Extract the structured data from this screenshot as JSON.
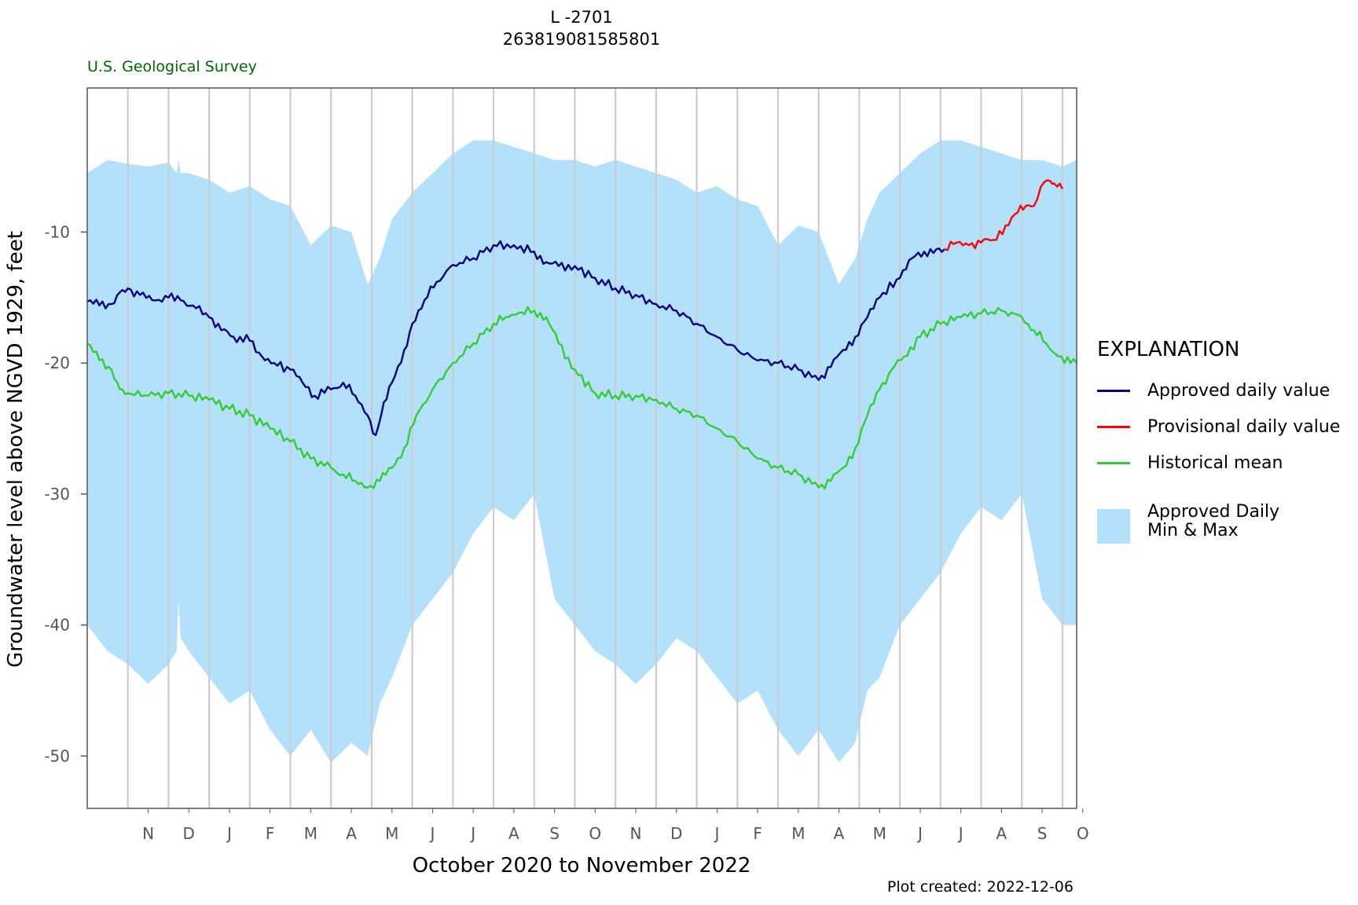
{
  "header": {
    "title_line1": "L -2701",
    "title_line2": "263819081585801",
    "agency": "U.S. Geological Survey"
  },
  "footer": {
    "plot_created": "Plot created: 2022-12-06"
  },
  "legend": {
    "title": "EXPLANATION",
    "approved": "Approved daily value",
    "provisional": "Provisional daily value",
    "mean": "Historical mean",
    "minmax_line1": "Approved Daily",
    "minmax_line2": "Min & Max"
  },
  "colors": {
    "approved": "#000080",
    "provisional": "#ff0000",
    "mean": "#32cd32",
    "band": "#b3e0fa",
    "grid": "#cccccc",
    "agency": "#006400"
  },
  "chart_data": {
    "type": "line",
    "title": "L -2701 263819081585801",
    "xlabel": "October 2020 to November 2022",
    "ylabel": "Groundwater level above NGVD 1929, feet",
    "x_tick_labels": [
      "N",
      "D",
      "J",
      "F",
      "M",
      "A",
      "M",
      "J",
      "J",
      "A",
      "S",
      "O",
      "N",
      "D",
      "J",
      "F",
      "M",
      "A",
      "M",
      "J",
      "J",
      "A",
      "S",
      "O"
    ],
    "y_ticks": [
      -10,
      -20,
      -30,
      -40,
      -50
    ],
    "ylim": [
      -54,
      1
    ],
    "grid": "vertical month boundaries",
    "legend_position": "right",
    "x_month_index_note": "x values are months elapsed since 2020-10-01",
    "xlim": [
      0,
      24.35
    ],
    "series": [
      {
        "name": "Approved Daily Min & Max",
        "kind": "band",
        "x": [
          0,
          0.5,
          1,
          1.5,
          2,
          2.2,
          2.25,
          2.3,
          2.5,
          3,
          3.5,
          4,
          4.5,
          5,
          5.5,
          6,
          6.5,
          6.9,
          7.2,
          7.5,
          8,
          8.5,
          9,
          9.5,
          10,
          10.5,
          11,
          11.5,
          12,
          12.5,
          13,
          13.5,
          14,
          14.5,
          15,
          15.5,
          16,
          16.5,
          17,
          17.5,
          18,
          18.5,
          18.9,
          19.2,
          19.5,
          20,
          20.5,
          21,
          21.5,
          22,
          22.5,
          23,
          23.5,
          24,
          24.35
        ],
        "max": [
          -5.5,
          -4.5,
          -4.8,
          -5,
          -4.7,
          -5.5,
          -4.5,
          -5.5,
          -5.5,
          -6,
          -7,
          -6.5,
          -7.5,
          -8,
          -11,
          -9.5,
          -10,
          -14,
          -12,
          -9,
          -7,
          -5.5,
          -4,
          -3,
          -3,
          -3.5,
          -4,
          -4.5,
          -4.5,
          -5,
          -4.5,
          -5,
          -5.5,
          -6,
          -7,
          -6.5,
          -7.5,
          -8,
          -11,
          -9.5,
          -10,
          -14,
          -12,
          -9,
          -7,
          -5.5,
          -4,
          -3,
          -3,
          -3.5,
          -4,
          -4.5,
          -4.5,
          -5,
          -4.5
        ],
        "min": [
          -40,
          -42,
          -43,
          -44.5,
          -43,
          -42,
          -38,
          -41,
          -42,
          -44,
          -46,
          -45,
          -48,
          -50,
          -48,
          -50.5,
          -49,
          -50,
          -46,
          -44,
          -40,
          -38,
          -36,
          -33,
          -31,
          -32,
          -30,
          -38,
          -40,
          -42,
          -43,
          -44.5,
          -43,
          -41,
          -42,
          -44,
          -46,
          -45,
          -48,
          -50,
          -48,
          -50.5,
          -49,
          -45,
          -44,
          -40,
          -38,
          -36,
          -33,
          -31,
          -32,
          -30,
          -38,
          -40,
          -40
        ]
      },
      {
        "name": "Approved daily value",
        "x": [
          0,
          0.3,
          0.6,
          0.8,
          1,
          1.3,
          1.6,
          2,
          2.3,
          2.6,
          3,
          3.3,
          3.6,
          4,
          4.3,
          4.6,
          5,
          5.3,
          5.6,
          6,
          6.3,
          6.6,
          6.9,
          7.1,
          7.3,
          7.5,
          7.8,
          8,
          8.3,
          8.6,
          9,
          9.5,
          10,
          10.5,
          11,
          11.3,
          11.6,
          12,
          12.5,
          13,
          13.5,
          14,
          14.5,
          15,
          15.5,
          16,
          16.5,
          17,
          17.5,
          18,
          18.3,
          18.6,
          18.9,
          19.2,
          19.5,
          20,
          20.3,
          20.6,
          20.9,
          21.1
        ],
        "values": [
          -15.3,
          -15.6,
          -15.5,
          -14.6,
          -14.3,
          -14.8,
          -15.2,
          -15,
          -15.2,
          -15.6,
          -16.5,
          -17.5,
          -18,
          -18.3,
          -19.5,
          -20,
          -20.5,
          -21.5,
          -22.5,
          -22,
          -21.5,
          -22.5,
          -24,
          -25.5,
          -23,
          -21.5,
          -19,
          -17,
          -15.2,
          -13.8,
          -12.5,
          -12,
          -11,
          -11,
          -11.5,
          -12.3,
          -12.6,
          -12.6,
          -13.5,
          -14.3,
          -14.8,
          -15.5,
          -16,
          -17,
          -18,
          -19,
          -19.8,
          -20,
          -20.5,
          -21.3,
          -20.3,
          -19,
          -18,
          -16.5,
          -15,
          -13.5,
          -12,
          -11.5,
          -11.3,
          -11.3
        ]
      },
      {
        "name": "Provisional daily value",
        "x": [
          21.1,
          21.4,
          21.7,
          22,
          22.3,
          22.6,
          22.9,
          23.1,
          23.3,
          23.55,
          23.7,
          23.8,
          24
        ],
        "values": [
          -11.3,
          -10.8,
          -11,
          -10.8,
          -10.6,
          -9.5,
          -8.5,
          -8,
          -8,
          -6.2,
          -6.1,
          -6.3,
          -6.7
        ]
      },
      {
        "name": "Historical mean",
        "x": [
          0,
          0.3,
          0.6,
          0.8,
          1,
          1.5,
          2,
          2.5,
          3,
          3.5,
          4,
          4.5,
          5,
          5.5,
          6,
          6.3,
          6.6,
          6.9,
          7.2,
          7.5,
          7.8,
          8.1,
          8.5,
          9,
          9.5,
          10,
          10.3,
          10.6,
          11,
          11.3,
          11.6,
          12,
          12.5,
          13,
          13.5,
          14,
          14.5,
          15,
          15.5,
          16,
          16.5,
          17,
          17.5,
          18,
          18.3,
          18.6,
          18.9,
          19.2,
          19.5,
          19.8,
          20.1,
          20.5,
          21,
          21.5,
          22,
          22.5,
          23,
          23.3,
          23.6,
          23.9,
          24.2,
          24.35
        ],
        "values": [
          -18.5,
          -19.8,
          -20.5,
          -22,
          -22.3,
          -22.5,
          -22.3,
          -22.5,
          -22.8,
          -23.5,
          -24,
          -25,
          -26,
          -27.3,
          -28,
          -28.5,
          -29,
          -29.5,
          -29,
          -28,
          -26.5,
          -24,
          -22,
          -20,
          -18.5,
          -17,
          -16.5,
          -16.2,
          -16,
          -16.5,
          -18.5,
          -20.5,
          -22.3,
          -22.5,
          -22.5,
          -22.8,
          -23.5,
          -24,
          -25,
          -26,
          -27.3,
          -28,
          -28.5,
          -29.5,
          -29,
          -28,
          -26.5,
          -24,
          -22,
          -20.5,
          -19.5,
          -18,
          -17,
          -16.5,
          -16.2,
          -16,
          -16.5,
          -17.5,
          -18.5,
          -19.5,
          -20,
          -20
        ]
      }
    ]
  }
}
